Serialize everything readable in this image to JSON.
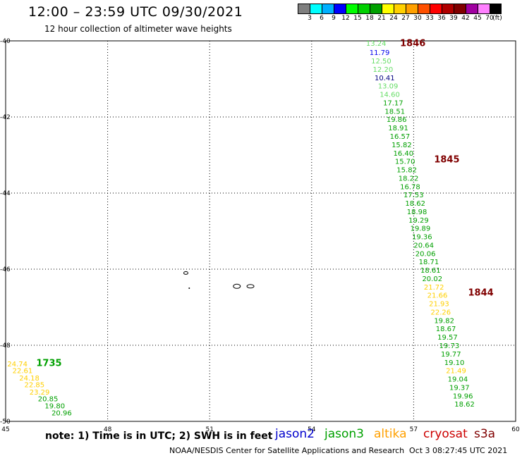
{
  "header": {
    "title": "12:00 – 23:59 UTC 09/30/2021",
    "subtitle": "12 hour collection of altimeter wave heights"
  },
  "colorbar": {
    "colors": [
      "#7f7f7f",
      "#00ffff",
      "#00b0ff",
      "#0000ff",
      "#00ff00",
      "#00d000",
      "#00a000",
      "#ffff00",
      "#ffd000",
      "#ffa000",
      "#ff5000",
      "#ff0000",
      "#b00000",
      "#800000",
      "#a000a0",
      "#ff80ff",
      "#000000"
    ],
    "labels": [
      "3",
      "6",
      "9",
      "12",
      "15",
      "18",
      "21",
      "24",
      "27",
      "30",
      "33",
      "36",
      "39",
      "42",
      "45",
      "70",
      "(ft)"
    ]
  },
  "axes": {
    "lon_ticks": [
      "45",
      "48",
      "51",
      "54",
      "57",
      "60"
    ],
    "lat_ticks": [
      "-40",
      "-42",
      "-44",
      "-46",
      "-48",
      "-50"
    ],
    "lon_range": [
      45,
      60
    ],
    "lat_range": [
      -50,
      -40
    ]
  },
  "tracks": [
    {
      "time_label": "1846",
      "label_color": "#800000",
      "label_lon": 56.6,
      "label_lat": -40.05,
      "points": [
        {
          "lon": 55.6,
          "lat": -40.06,
          "value": "13.24",
          "color": "#66dd66"
        },
        {
          "lon": 55.7,
          "lat": -40.3,
          "value": "11.79",
          "color": "#0000ee"
        },
        {
          "lon": 55.75,
          "lat": -40.52,
          "value": "12.50",
          "color": "#66dd66"
        },
        {
          "lon": 55.8,
          "lat": -40.74,
          "value": "12.20",
          "color": "#66dd66"
        },
        {
          "lon": 55.85,
          "lat": -40.96,
          "value": "10.41",
          "color": "#000080"
        },
        {
          "lon": 55.95,
          "lat": -41.18,
          "value": "13.09",
          "color": "#66dd66"
        },
        {
          "lon": 56.0,
          "lat": -41.4,
          "value": "14.60",
          "color": "#66dd66"
        },
        {
          "lon": 56.1,
          "lat": -41.62,
          "value": "17.17",
          "color": "#00a000"
        },
        {
          "lon": 56.15,
          "lat": -41.84,
          "value": "18.51",
          "color": "#00a000"
        },
        {
          "lon": 56.2,
          "lat": -42.06,
          "value": "19.86",
          "color": "#00a000"
        },
        {
          "lon": 56.25,
          "lat": -42.28,
          "value": "18.91",
          "color": "#00a000"
        },
        {
          "lon": 56.3,
          "lat": -42.5,
          "value": "16.57",
          "color": "#00a000"
        },
        {
          "lon": 56.35,
          "lat": -42.72,
          "value": "15.82",
          "color": "#00a000"
        },
        {
          "lon": 56.4,
          "lat": -42.94,
          "value": "16.40",
          "color": "#00a000"
        },
        {
          "lon": 56.45,
          "lat": -43.16,
          "value": "15.70",
          "color": "#00a000"
        },
        {
          "lon": 56.5,
          "lat": -43.38,
          "value": "15.82",
          "color": "#00a000"
        },
        {
          "lon": 56.55,
          "lat": -43.6,
          "value": "18.22",
          "color": "#00a000"
        },
        {
          "lon": 56.6,
          "lat": -43.82,
          "value": "16.78",
          "color": "#00a000"
        },
        {
          "lon": 56.7,
          "lat": -44.04,
          "value": "17.53",
          "color": "#00a000"
        },
        {
          "lon": 56.75,
          "lat": -44.26,
          "value": "18.62",
          "color": "#00a000"
        },
        {
          "lon": 56.8,
          "lat": -44.48,
          "value": "18.98",
          "color": "#00a000"
        },
        {
          "lon": 56.85,
          "lat": -44.7,
          "value": "19.29",
          "color": "#00a000"
        },
        {
          "lon": 56.9,
          "lat": -44.92,
          "value": "19.89",
          "color": "#00a000"
        },
        {
          "lon": 56.95,
          "lat": -45.14,
          "value": "19.36",
          "color": "#00a000"
        },
        {
          "lon": 57.0,
          "lat": -45.36,
          "value": "20.64",
          "color": "#00a000"
        },
        {
          "lon": 57.05,
          "lat": -45.58,
          "value": "20.06",
          "color": "#00a000"
        }
      ],
      "extra_label": {
        "text": "1845",
        "color": "#800000",
        "lon": 57.6,
        "lat": -43.1
      }
    },
    {
      "time_label": "1844",
      "label_color": "#800000",
      "label_lon": 58.6,
      "label_lat": -46.6,
      "points": [
        {
          "lon": 57.15,
          "lat": -45.8,
          "value": "18.71",
          "color": "#00a000"
        },
        {
          "lon": 57.2,
          "lat": -46.02,
          "value": "18.61",
          "color": "#00a000"
        },
        {
          "lon": 57.25,
          "lat": -46.24,
          "value": "20.02",
          "color": "#00a000"
        },
        {
          "lon": 57.3,
          "lat": -46.46,
          "value": "21.72",
          "color": "#ffd000"
        },
        {
          "lon": 57.4,
          "lat": -46.68,
          "value": "21.66",
          "color": "#ffd000"
        },
        {
          "lon": 57.45,
          "lat": -46.9,
          "value": "21.93",
          "color": "#ffd000"
        },
        {
          "lon": 57.5,
          "lat": -47.12,
          "value": "22.26",
          "color": "#ffd000"
        },
        {
          "lon": 57.6,
          "lat": -47.34,
          "value": "19.82",
          "color": "#00a000"
        },
        {
          "lon": 57.65,
          "lat": -47.56,
          "value": "18.67",
          "color": "#00a000"
        },
        {
          "lon": 57.7,
          "lat": -47.78,
          "value": "19.57",
          "color": "#00a000"
        },
        {
          "lon": 57.75,
          "lat": -48.0,
          "value": "19.73",
          "color": "#00a000"
        },
        {
          "lon": 57.8,
          "lat": -48.22,
          "value": "19.77",
          "color": "#00a000"
        },
        {
          "lon": 57.9,
          "lat": -48.44,
          "value": "19.10",
          "color": "#00a000"
        },
        {
          "lon": 57.95,
          "lat": -48.66,
          "value": "21.49",
          "color": "#ffd000"
        },
        {
          "lon": 58.0,
          "lat": -48.88,
          "value": "19.04",
          "color": "#00a000"
        },
        {
          "lon": 58.05,
          "lat": -49.1,
          "value": "19.37",
          "color": "#00a000"
        },
        {
          "lon": 58.15,
          "lat": -49.32,
          "value": "19.96",
          "color": "#00a000"
        },
        {
          "lon": 58.2,
          "lat": -49.54,
          "value": "18.62",
          "color": "#00a000"
        }
      ]
    },
    {
      "time_label": "1735",
      "label_color": "#00a000",
      "label_lon": 45.9,
      "label_lat": -48.45,
      "points": [
        {
          "lon": 45.05,
          "lat": -48.48,
          "value": "24.74",
          "color": "#ffd000"
        },
        {
          "lon": 45.2,
          "lat": -48.66,
          "value": "22.61",
          "color": "#ffd000"
        },
        {
          "lon": 45.4,
          "lat": -48.85,
          "value": "24.18",
          "color": "#ffd000"
        },
        {
          "lon": 45.55,
          "lat": -49.03,
          "value": "22.85",
          "color": "#ffd000"
        },
        {
          "lon": 45.7,
          "lat": -49.22,
          "value": "23.29",
          "color": "#ffd000"
        },
        {
          "lon": 45.95,
          "lat": -49.4,
          "value": "20.85",
          "color": "#00a000"
        },
        {
          "lon": 46.15,
          "lat": -49.58,
          "value": "19.80",
          "color": "#00a000"
        },
        {
          "lon": 46.35,
          "lat": -49.77,
          "value": "20.96",
          "color": "#00a000"
        }
      ]
    }
  ],
  "footer": {
    "note": "note: 1) Time is in UTC; 2) SWH is in feet",
    "missions": [
      {
        "name": "jason2",
        "color": "#0000cc"
      },
      {
        "name": "jason3",
        "color": "#00a000"
      },
      {
        "name": "altika",
        "color": "#ffa000"
      },
      {
        "name": "cryosat",
        "color": "#cc0000"
      },
      {
        "name": "s3a",
        "color": "#800000"
      }
    ],
    "credit": "NOAA/NESDIS Center for Satellite Applications and Research",
    "timestamp": "Oct  3 08:27:45 UTC 2021"
  }
}
